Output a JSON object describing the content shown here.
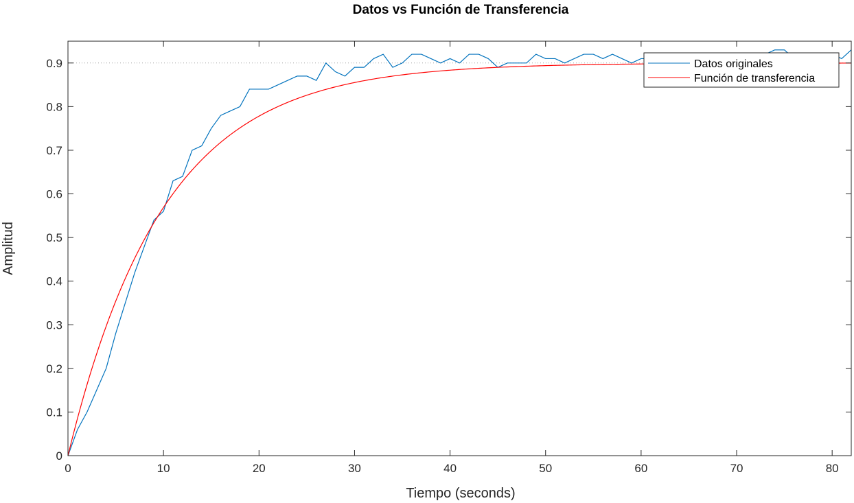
{
  "chart_data": {
    "type": "line",
    "title": "Datos vs Función de Transferencia",
    "xlabel": "Tiempo (seconds)",
    "ylabel": "Amplitud",
    "xlim": [
      0,
      82
    ],
    "ylim": [
      0,
      0.95
    ],
    "xticks": [
      0,
      10,
      20,
      30,
      40,
      50,
      60,
      70,
      80
    ],
    "yticks": [
      0,
      0.1,
      0.2,
      0.3,
      0.4,
      0.5,
      0.6,
      0.7,
      0.8,
      0.9
    ],
    "reference_line": {
      "y": 0.9,
      "style": "dotted",
      "color": "#a0a0a0"
    },
    "grid": false,
    "legend_position": "top-right",
    "series": [
      {
        "name": "Datos originales",
        "color": "#0072bd",
        "x": [
          0,
          1,
          2,
          3,
          4,
          5,
          6,
          7,
          8,
          9,
          10,
          11,
          12,
          13,
          14,
          15,
          16,
          17,
          18,
          19,
          20,
          21,
          22,
          23,
          24,
          25,
          26,
          27,
          28,
          29,
          30,
          31,
          32,
          33,
          34,
          35,
          36,
          37,
          38,
          39,
          40,
          41,
          42,
          43,
          44,
          45,
          46,
          47,
          48,
          49,
          50,
          51,
          52,
          53,
          54,
          55,
          56,
          57,
          58,
          59,
          60,
          61,
          62,
          63,
          64,
          65,
          66,
          67,
          68,
          69,
          70,
          71,
          72,
          73,
          74,
          75,
          76,
          77,
          78,
          79,
          80,
          81,
          82
        ],
        "y": [
          0,
          0.06,
          0.1,
          0.15,
          0.2,
          0.28,
          0.35,
          0.42,
          0.48,
          0.54,
          0.56,
          0.63,
          0.64,
          0.7,
          0.71,
          0.75,
          0.78,
          0.79,
          0.8,
          0.84,
          0.84,
          0.84,
          0.85,
          0.86,
          0.87,
          0.87,
          0.86,
          0.9,
          0.88,
          0.87,
          0.89,
          0.89,
          0.91,
          0.92,
          0.89,
          0.9,
          0.92,
          0.92,
          0.91,
          0.9,
          0.91,
          0.9,
          0.92,
          0.92,
          0.91,
          0.89,
          0.9,
          0.9,
          0.9,
          0.92,
          0.91,
          0.91,
          0.9,
          0.91,
          0.92,
          0.92,
          0.91,
          0.92,
          0.91,
          0.9,
          0.91,
          0.91,
          0.92,
          0.92,
          0.92,
          0.92,
          0.91,
          0.91,
          0.91,
          0.92,
          0.92,
          0.91,
          0.91,
          0.92,
          0.93,
          0.93,
          0.91,
          0.92,
          0.91,
          0.91,
          0.92,
          0.91,
          0.93
        ]
      },
      {
        "name": "Función de transferencia",
        "color": "#ff0000",
        "model": {
          "gain": 0.9,
          "tau": 10
        }
      }
    ]
  }
}
